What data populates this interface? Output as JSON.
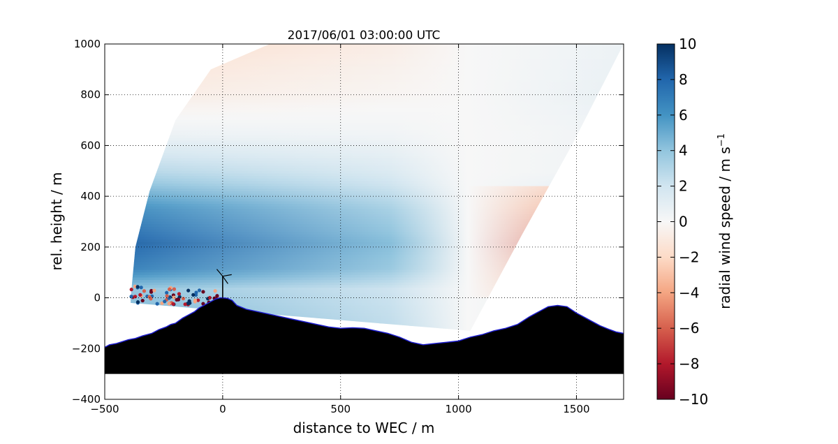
{
  "chart_data": {
    "type": "heatmap",
    "title": "2017/06/01 03:00:00 UTC",
    "xlabel": "distance to WEC / m",
    "ylabel": "rel. height / m",
    "xlim": [
      -500,
      1700
    ],
    "ylim": [
      -400,
      1000
    ],
    "xticks": [
      -500,
      0,
      500,
      1000,
      1500
    ],
    "yticks": [
      -400,
      -200,
      0,
      200,
      400,
      600,
      800,
      1000
    ],
    "grid": true,
    "colorbar": {
      "label": "radial wind speed / m s",
      "label_superscript": "−1",
      "range": [
        -10,
        10
      ],
      "ticks": [
        10,
        8,
        6,
        4,
        2,
        0,
        -2,
        -4,
        -6,
        -8,
        -10
      ],
      "tick_labels": [
        "10",
        "8",
        "6",
        "4",
        "2",
        "0",
        "−2",
        "−4",
        "−6",
        "−8",
        "−10"
      ],
      "colormap": "RdBu",
      "colors": [
        "#67001f",
        "#b2182b",
        "#d6604d",
        "#f4a582",
        "#fddbc7",
        "#f7f7f7",
        "#d1e5f0",
        "#92c5de",
        "#4393c3",
        "#2166ac",
        "#053061"
      ]
    },
    "terrain": {
      "x": [
        -500,
        -480,
        -450,
        -400,
        -370,
        -340,
        -300,
        -270,
        -240,
        -220,
        -200,
        -170,
        -150,
        -120,
        -100,
        -80,
        -50,
        -30,
        -10,
        0,
        20,
        40,
        60,
        100,
        150,
        200,
        250,
        300,
        350,
        400,
        450,
        500,
        550,
        600,
        650,
        700,
        750,
        800,
        850,
        900,
        950,
        1000,
        1050,
        1100,
        1150,
        1200,
        1250,
        1300,
        1350,
        1380,
        1420,
        1460,
        1500,
        1530,
        1560,
        1600,
        1640,
        1670,
        1700
      ],
      "y": [
        -195,
        -185,
        -180,
        -165,
        -160,
        -150,
        -140,
        -125,
        -115,
        -105,
        -100,
        -80,
        -70,
        -55,
        -40,
        -30,
        -15,
        -5,
        0,
        0,
        -2,
        -10,
        -30,
        -45,
        -55,
        -65,
        -75,
        -85,
        -95,
        -105,
        -115,
        -120,
        -118,
        -120,
        -130,
        -140,
        -155,
        -175,
        -185,
        -180,
        -175,
        -170,
        -155,
        -145,
        -130,
        -120,
        -105,
        -75,
        -50,
        -35,
        -30,
        -35,
        -60,
        -75,
        -90,
        -110,
        -125,
        -135,
        -140
      ],
      "base": -300,
      "color": "#000000",
      "outline": "#1f1fcf"
    },
    "scan": {
      "origin_x": 0,
      "origin_y": 0,
      "inner_radius_fraction": 0
    },
    "wind_field_bands": [
      {
        "height": 950,
        "value_left": -1.5,
        "value_right": 0.6
      },
      {
        "height": 800,
        "value_left": -0.8,
        "value_right": 0.8
      },
      {
        "height": 650,
        "value_left": 0.6,
        "value_right": 0.4
      },
      {
        "height": 500,
        "value_left": 3.0,
        "value_right": 0.5
      },
      {
        "height": 350,
        "value_left": 6.5,
        "value_right": 2.0
      },
      {
        "height": 220,
        "value_left": 8.2,
        "value_right": 3.0
      },
      {
        "height": 120,
        "value_left": 7.0,
        "value_right": 3.0
      },
      {
        "height": 40,
        "value_left": 4.0,
        "value_right": 1.5
      }
    ],
    "wec": {
      "x": 0,
      "hub_height": 85,
      "rotor_radius": 40
    }
  }
}
